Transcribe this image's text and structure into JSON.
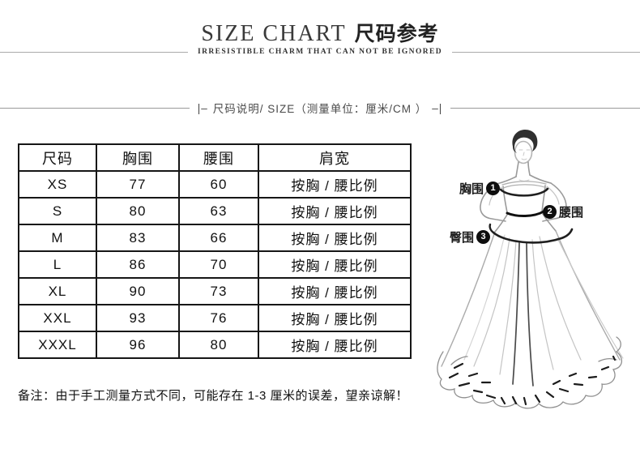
{
  "header": {
    "title_en": "SIZE CHART",
    "title_zh": "尺码参考",
    "subtitle": "IRRESISTIBLE CHARM THAT CAN NOT BE IGNORED"
  },
  "section": {
    "prefix": "|–",
    "label": "尺码说明/ SIZE（测量单位：厘米/CM ）",
    "suffix": "–|"
  },
  "chart_data": {
    "type": "table",
    "title": "尺码参考 / SIZE CHART",
    "unit": "厘米/CM",
    "columns": [
      "尺码",
      "胸围",
      "腰围",
      "肩宽"
    ],
    "rows": [
      [
        "XS",
        "77",
        "60",
        "按胸 / 腰比例"
      ],
      [
        "S",
        "80",
        "63",
        "按胸 / 腰比例"
      ],
      [
        "M",
        "83",
        "66",
        "按胸 / 腰比例"
      ],
      [
        "L",
        "86",
        "70",
        "按胸 / 腰比例"
      ],
      [
        "XL",
        "90",
        "73",
        "按胸 / 腰比例"
      ],
      [
        "XXL",
        "93",
        "76",
        "按胸 / 腰比例"
      ],
      [
        "XXXL",
        "96",
        "80",
        "按胸 / 腰比例"
      ]
    ]
  },
  "figure": {
    "labels": [
      {
        "text": "胸围",
        "num": "1"
      },
      {
        "text": "腰围",
        "num": "2"
      },
      {
        "text": "臀围",
        "num": "3"
      }
    ]
  },
  "note": "备注：由于手工测量方式不同，可能存在 1-3 厘米的误差，望亲谅解！",
  "colors": {
    "text": "#1a1a1a",
    "table_border": "#161616",
    "divider_line": "#9a9a9a",
    "sketch_stroke": "#9a9a9a",
    "marker_bg": "#0e0e0e"
  }
}
